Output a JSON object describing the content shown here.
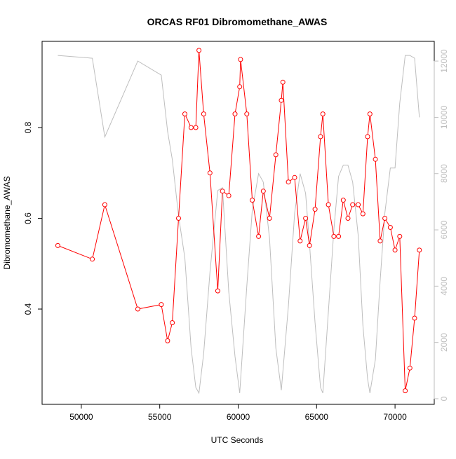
{
  "chart_data": {
    "type": "line",
    "title": "ORCAS RF01 Dibromomethane_AWAS",
    "xlabel": "UTC Seconds",
    "ylabel": "Dibromomethane_AWAS",
    "xlim": [
      47500,
      72500
    ],
    "ylim": [
      0.19,
      0.99
    ],
    "y2lim": [
      -200,
      12700
    ],
    "x_ticks": [
      50000,
      55000,
      60000,
      65000,
      70000
    ],
    "x_tick_labels": [
      "50000",
      "55000",
      "60000",
      "65000",
      "70000"
    ],
    "y_ticks": [
      0.4,
      0.6,
      0.8
    ],
    "y_tick_labels": [
      "0.4",
      "0.6",
      "0.8"
    ],
    "y2_ticks": [
      0,
      2000,
      4000,
      6000,
      8000,
      10000,
      12000
    ],
    "y2_tick_labels": [
      "0",
      "2000",
      "4000",
      "6000",
      "8000",
      "10000",
      "12000"
    ],
    "colors": {
      "primary": "#ff0000",
      "secondary": "#bebebe",
      "axis": "#000000",
      "secondary_axis_text": "#bebebe"
    },
    "series": [
      {
        "axis": "left",
        "color": "#ff0000",
        "markers": "open-circle",
        "x": [
          48500,
          50700,
          51500,
          53600,
          55100,
          55500,
          55800,
          56200,
          56600,
          57000,
          57300,
          57500,
          57800,
          58200,
          58700,
          59000,
          59400,
          59800,
          60100,
          60150,
          60550,
          60900,
          61300,
          61600,
          62000,
          62400,
          62750,
          62850,
          63200,
          63600,
          63950,
          64300,
          64550,
          64900,
          65250,
          65400,
          65750,
          66100,
          66400,
          66700,
          67000,
          67300,
          67650,
          67950,
          68250,
          68400,
          68750,
          69050,
          69350,
          69700,
          70000,
          70300,
          70650,
          70950,
          71250,
          71550
        ],
        "y": [
          0.54,
          0.51,
          0.63,
          0.4,
          0.41,
          0.33,
          0.37,
          0.6,
          0.83,
          0.8,
          0.8,
          0.97,
          0.83,
          0.7,
          0.44,
          0.66,
          0.65,
          0.83,
          0.89,
          0.95,
          0.83,
          0.64,
          0.56,
          0.66,
          0.6,
          0.74,
          0.86,
          0.9,
          0.68,
          0.69,
          0.55,
          0.6,
          0.54,
          0.62,
          0.78,
          0.83,
          0.63,
          0.56,
          0.56,
          0.64,
          0.6,
          0.63,
          0.63,
          0.61,
          0.78,
          0.83,
          0.73,
          0.55,
          0.6,
          0.58,
          0.53,
          0.56,
          0.22,
          0.27,
          0.38,
          0.53
        ]
      },
      {
        "axis": "right",
        "color": "#bebebe",
        "markers": "none",
        "x": [
          48500,
          50700,
          51500,
          53600,
          55100,
          55500,
          55800,
          56200,
          56600,
          57000,
          57300,
          57500,
          57800,
          58200,
          58700,
          59000,
          59400,
          59800,
          60100,
          60550,
          60900,
          61300,
          61600,
          62000,
          62400,
          62750,
          63200,
          63600,
          63950,
          64300,
          64550,
          64900,
          65250,
          65400,
          65750,
          66100,
          66400,
          66700,
          67000,
          67300,
          67650,
          67950,
          68250,
          68400,
          68750,
          69050,
          69350,
          69700,
          70000,
          70300,
          70650,
          70950,
          71250,
          71550
        ],
        "y": [
          12200,
          12100,
          9300,
          12000,
          11500,
          9500,
          8500,
          6500,
          5000,
          1800,
          400,
          200,
          1600,
          4500,
          7400,
          7500,
          3800,
          1500,
          200,
          4000,
          6700,
          8000,
          7700,
          5700,
          1800,
          300,
          3300,
          6600,
          8000,
          7300,
          5500,
          2700,
          400,
          200,
          3100,
          6000,
          7900,
          8300,
          8300,
          7700,
          5800,
          2600,
          700,
          200,
          1400,
          4200,
          6600,
          8200,
          8200,
          10500,
          12200,
          12200,
          12100,
          10000
        ]
      }
    ]
  }
}
